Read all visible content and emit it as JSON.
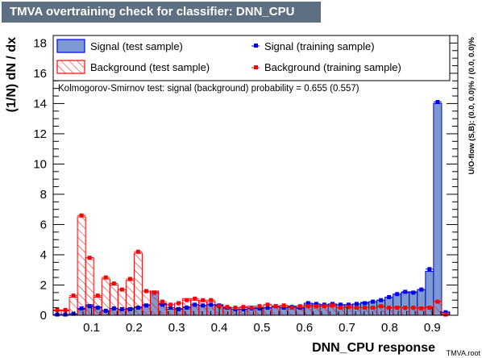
{
  "window": {
    "title": "TMVA overtraining check for classifier: DNN_CPU"
  },
  "corner_label": "TMVA.root",
  "chart_data": {
    "type": "bar",
    "title": "TMVA overtraining check for classifier: DNN_CPU",
    "xlabel": "DNN_CPU response",
    "ylabel": "(1/N) dN / dx",
    "right_label": "U/O-flow (S,B): (0.0, 0.0)% / (0.0, 0.0)%",
    "annotation": "Kolmogorov-Smirnov test: signal (background) probability = 0.655 (0.557)",
    "xlim": [
      0.01,
      0.96
    ],
    "ylim": [
      0,
      18.5
    ],
    "x_ticks": [
      "0.1",
      "0.2",
      "0.3",
      "0.4",
      "0.5",
      "0.6",
      "0.7",
      "0.8",
      "0.9"
    ],
    "y_ticks": [
      "0",
      "2",
      "4",
      "6",
      "8",
      "10",
      "12",
      "14",
      "16",
      "18"
    ],
    "colors": {
      "signal_fill": "#7d99d1",
      "signal_line": "#0000ee",
      "background_line": "#ff0000",
      "title_bg": "#5e6f82"
    },
    "legend": [
      {
        "label": "Signal (test sample)",
        "kind": "signal-fill"
      },
      {
        "label": "Signal (training sample)",
        "kind": "signal-marker"
      },
      {
        "label": "Background (test sample)",
        "kind": "background-hatch"
      },
      {
        "label": "Background (training sample)",
        "kind": "background-marker"
      }
    ],
    "bin_start": 0.01,
    "bin_width": 0.019,
    "series": [
      {
        "name": "Signal (test sample)",
        "values": [
          0.05,
          0.05,
          0.08,
          0.4,
          0.7,
          0.55,
          0.3,
          0.45,
          0.4,
          0.45,
          0.55,
          0.7,
          1.6,
          0.75,
          0.4,
          0.45,
          0.55,
          0.7,
          0.65,
          0.7,
          0.7,
          0.45,
          0.4,
          0.4,
          0.45,
          0.5,
          0.5,
          0.55,
          0.5,
          0.6,
          0.45,
          0.8,
          0.75,
          0.7,
          0.75,
          0.7,
          0.7,
          0.75,
          0.85,
          0.9,
          1.0,
          1.2,
          1.4,
          1.5,
          1.55,
          1.7,
          2.9,
          14.0,
          0.2
        ]
      },
      {
        "name": "Signal (training sample)",
        "values": [
          0.05,
          0.05,
          0.1,
          0.45,
          0.6,
          0.5,
          0.3,
          0.45,
          0.4,
          0.4,
          0.5,
          0.65,
          1.5,
          0.7,
          0.5,
          0.4,
          0.5,
          0.7,
          0.65,
          0.7,
          0.65,
          0.5,
          0.4,
          0.4,
          0.45,
          0.45,
          0.5,
          0.6,
          0.5,
          0.55,
          0.5,
          0.8,
          0.75,
          0.7,
          0.75,
          0.7,
          0.7,
          0.75,
          0.8,
          0.9,
          1.0,
          1.2,
          1.4,
          1.55,
          1.5,
          1.7,
          3.05,
          14.1,
          0.2
        ]
      },
      {
        "name": "Background (test sample)",
        "values": [
          0.3,
          0.3,
          1.2,
          6.5,
          3.8,
          1.2,
          2.4,
          2.0,
          1.7,
          2.3,
          4.1,
          1.6,
          1.6,
          0.8,
          0.7,
          0.8,
          1.1,
          1.0,
          0.9,
          0.9,
          0.6,
          0.5,
          0.5,
          0.5,
          0.6,
          0.5,
          0.7,
          0.6,
          0.6,
          0.6,
          0.6,
          0.65,
          0.6,
          0.6,
          0.6,
          0.5,
          0.5,
          0.5,
          0.5,
          0.5,
          0.55,
          0.5,
          0.55,
          0.5,
          0.5,
          0.5,
          0.55,
          0.9,
          0.05
        ]
      },
      {
        "name": "Background (training sample)",
        "values": [
          0.35,
          0.35,
          1.3,
          6.6,
          3.8,
          1.3,
          2.5,
          2.1,
          1.7,
          2.4,
          4.2,
          1.6,
          1.5,
          0.9,
          0.7,
          0.8,
          1.0,
          1.1,
          1.0,
          1.0,
          0.6,
          0.55,
          0.5,
          0.55,
          0.5,
          0.6,
          0.7,
          0.6,
          0.65,
          0.5,
          0.6,
          0.6,
          0.6,
          0.6,
          0.65,
          0.5,
          0.55,
          0.5,
          0.5,
          0.5,
          0.6,
          0.5,
          0.5,
          0.5,
          0.5,
          0.45,
          0.5,
          0.9,
          0.05
        ]
      }
    ]
  }
}
